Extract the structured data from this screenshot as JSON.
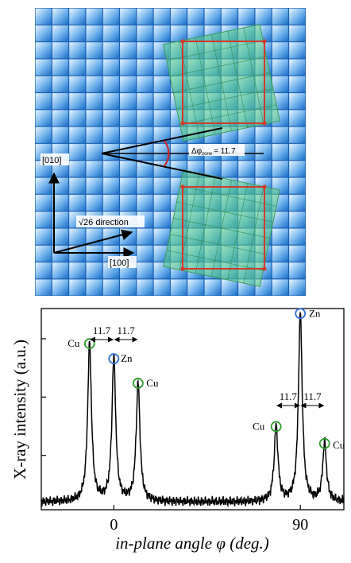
{
  "top_panel": {
    "label_010": "[010]",
    "label_100": "[100]",
    "label_sqrt26": "√26 direction",
    "delta_phi_label": "Δφ",
    "delta_phi_sub": "zone",
    "delta_phi_value": "= 11.7"
  },
  "chart_data": {
    "type": "line",
    "xlabel": "in-plane angle  φ (deg.)",
    "ylabel": "X-ray intensity (a.u.)",
    "xlim": [
      -35,
      111
    ],
    "x_ticks": [
      0,
      90
    ],
    "x_tick_labels": [
      "0",
      "90"
    ],
    "ylim": [
      0,
      1
    ],
    "peaks": [
      {
        "x": -11.7,
        "y": 0.84,
        "label": "Cu",
        "marker_color": "#2e9e2e"
      },
      {
        "x": 0,
        "y": 0.76,
        "label": "Zn",
        "marker_color": "#2f6fd6"
      },
      {
        "x": 11.7,
        "y": 0.63,
        "label": "Cu",
        "marker_color": "#2e9e2e"
      },
      {
        "x": 78.3,
        "y": 0.4,
        "label": "Cu",
        "marker_color": "#2e9e2e"
      },
      {
        "x": 90,
        "y": 1.0,
        "label": "Zn",
        "marker_color": "#2f6fd6"
      },
      {
        "x": 101.7,
        "y": 0.31,
        "label": "Cu",
        "marker_color": "#2e9e2e"
      }
    ],
    "annotations": [
      {
        "text": "11.7",
        "from": -11.7,
        "to": 0
      },
      {
        "text": "11.7",
        "from": 0,
        "to": 11.7
      },
      {
        "text": "11.7",
        "from": 78.3,
        "to": 90
      },
      {
        "text": "11.7",
        "from": 90,
        "to": 101.7
      }
    ]
  }
}
